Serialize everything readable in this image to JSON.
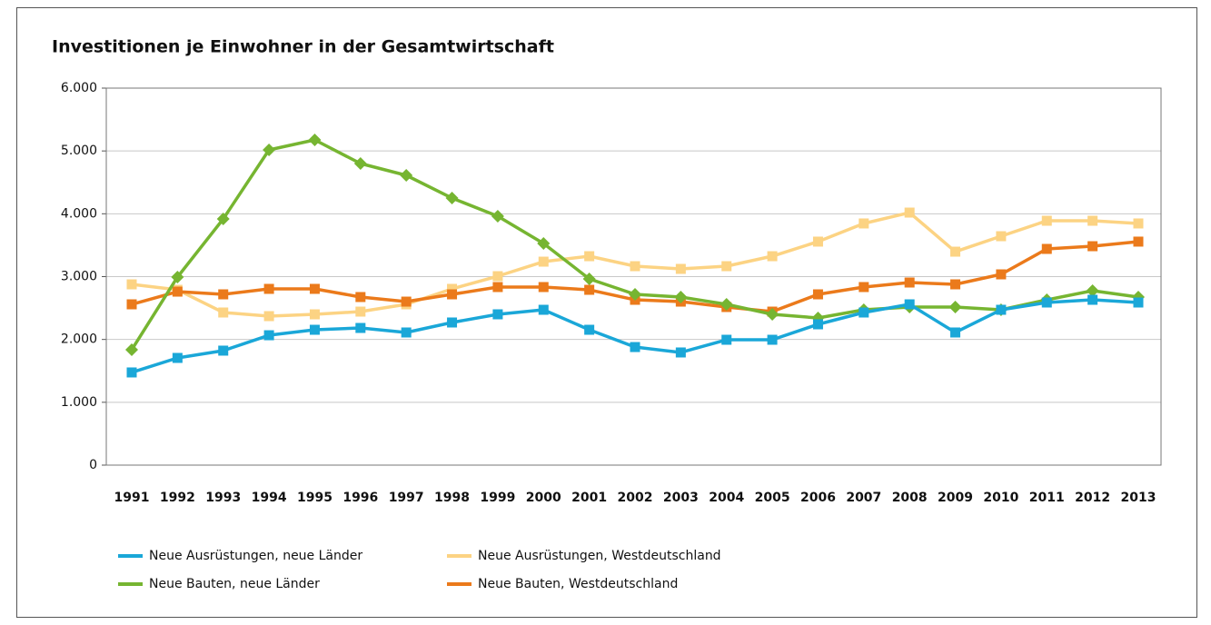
{
  "chart_data": {
    "type": "line",
    "title": "Investitionen je Einwohner in der Gesamtwirtschaft",
    "categories": [
      "1991",
      "1992",
      "1993",
      "1994",
      "1995",
      "1996",
      "1997",
      "1998",
      "1999",
      "2000",
      "2001",
      "2002",
      "2003",
      "2004",
      "2005",
      "2006",
      "2007",
      "2008",
      "2009",
      "2010",
      "2011",
      "2012",
      "2013"
    ],
    "series": [
      {
        "name": "Neue Ausrüstungen, neue Länder",
        "color": "#1aa7d8",
        "marker": "square",
        "values": [
          1475,
          1706,
          1822,
          2067,
          2154,
          2183,
          2111,
          2270,
          2400,
          2472,
          2154,
          1879,
          1793,
          1995,
          1995,
          2241,
          2429,
          2559,
          2111,
          2472,
          2588,
          2631,
          2588
        ]
      },
      {
        "name": "Neue Ausrüstungen, Westdeutschland",
        "color": "#fcd383",
        "marker": "square",
        "values": [
          2877,
          2790,
          2429,
          2371,
          2400,
          2443,
          2559,
          2805,
          3007,
          3238,
          3325,
          3166,
          3123,
          3166,
          3325,
          3557,
          3846,
          4019,
          3397,
          3643,
          3889,
          3889,
          3846
        ]
      },
      {
        "name": "Neue Bauten, neue Länder",
        "color": "#76b531",
        "marker": "diamond",
        "values": [
          1836,
          2993,
          3918,
          5017,
          5176,
          4800,
          4612,
          4250,
          3961,
          3528,
          2964,
          2718,
          2675,
          2559,
          2400,
          2342,
          2472,
          2516,
          2516,
          2472,
          2631,
          2776,
          2675
        ]
      },
      {
        "name": "Neue Bauten, Westdeutschland",
        "color": "#eb7a1b",
        "marker": "square",
        "values": [
          2559,
          2761,
          2718,
          2805,
          2805,
          2675,
          2602,
          2718,
          2834,
          2834,
          2790,
          2631,
          2602,
          2516,
          2443,
          2718,
          2834,
          2906,
          2877,
          3036,
          3441,
          3484,
          3557
        ]
      }
    ],
    "ylim": [
      0,
      6000
    ],
    "yticks": [
      0,
      {
        "value": 1000,
        "label": "1.000"
      },
      {
        "value": 2000,
        "label": "2.000"
      },
      {
        "value": 3000,
        "label": "3.000"
      },
      {
        "value": 4000,
        "label": "4.000"
      },
      {
        "value": 5000,
        "label": "5.000"
      },
      {
        "value": 6000,
        "label": "6.000"
      }
    ],
    "grid": true
  }
}
